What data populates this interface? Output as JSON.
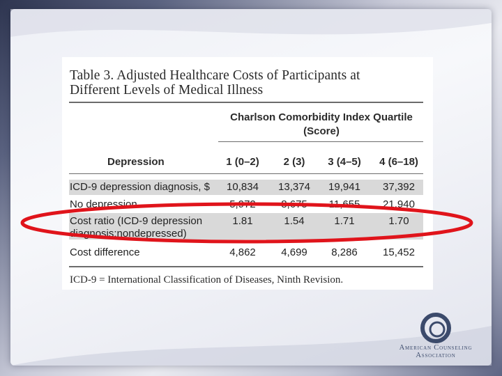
{
  "table": {
    "title_line1": "Table 3. Adjusted Healthcare Costs of Participants at",
    "title_line2": "Different Levels of Medical Illness",
    "group_header_line1": "Charlson Comorbidity Index Quartile",
    "group_header_line2": "(Score)",
    "row_header": "Depression",
    "columns": [
      "1 (0–2)",
      "2 (3)",
      "3 (4–5)",
      "4 (6–18)"
    ],
    "rows": [
      {
        "label": "ICD-9 depression diagnosis, $",
        "label2": "",
        "values": [
          "10,834",
          "13,374",
          "19,941",
          "37,392"
        ]
      },
      {
        "label": "No depression",
        "label2": "",
        "values": [
          "5,972",
          "8,675",
          "11,655",
          "21,940"
        ]
      },
      {
        "label": "Cost ratio (ICD-9 depression",
        "label2": "diagnosis:nondepressed)",
        "values": [
          "1.81",
          "1.54",
          "1.71",
          "1.70"
        ]
      },
      {
        "label": "Cost difference",
        "label2": "",
        "values": [
          "4,862",
          "4,699",
          "8,286",
          "15,452"
        ]
      }
    ],
    "footnote": "ICD-9 = International Classification of Diseases, Ninth Revision."
  },
  "highlight": {
    "color": "#e0141b",
    "target": "Cost ratio row"
  },
  "logo": {
    "line1": "American Counseling",
    "line2": "Association",
    "icon": "aca-ring-logo",
    "color": "#3b4a6b"
  }
}
